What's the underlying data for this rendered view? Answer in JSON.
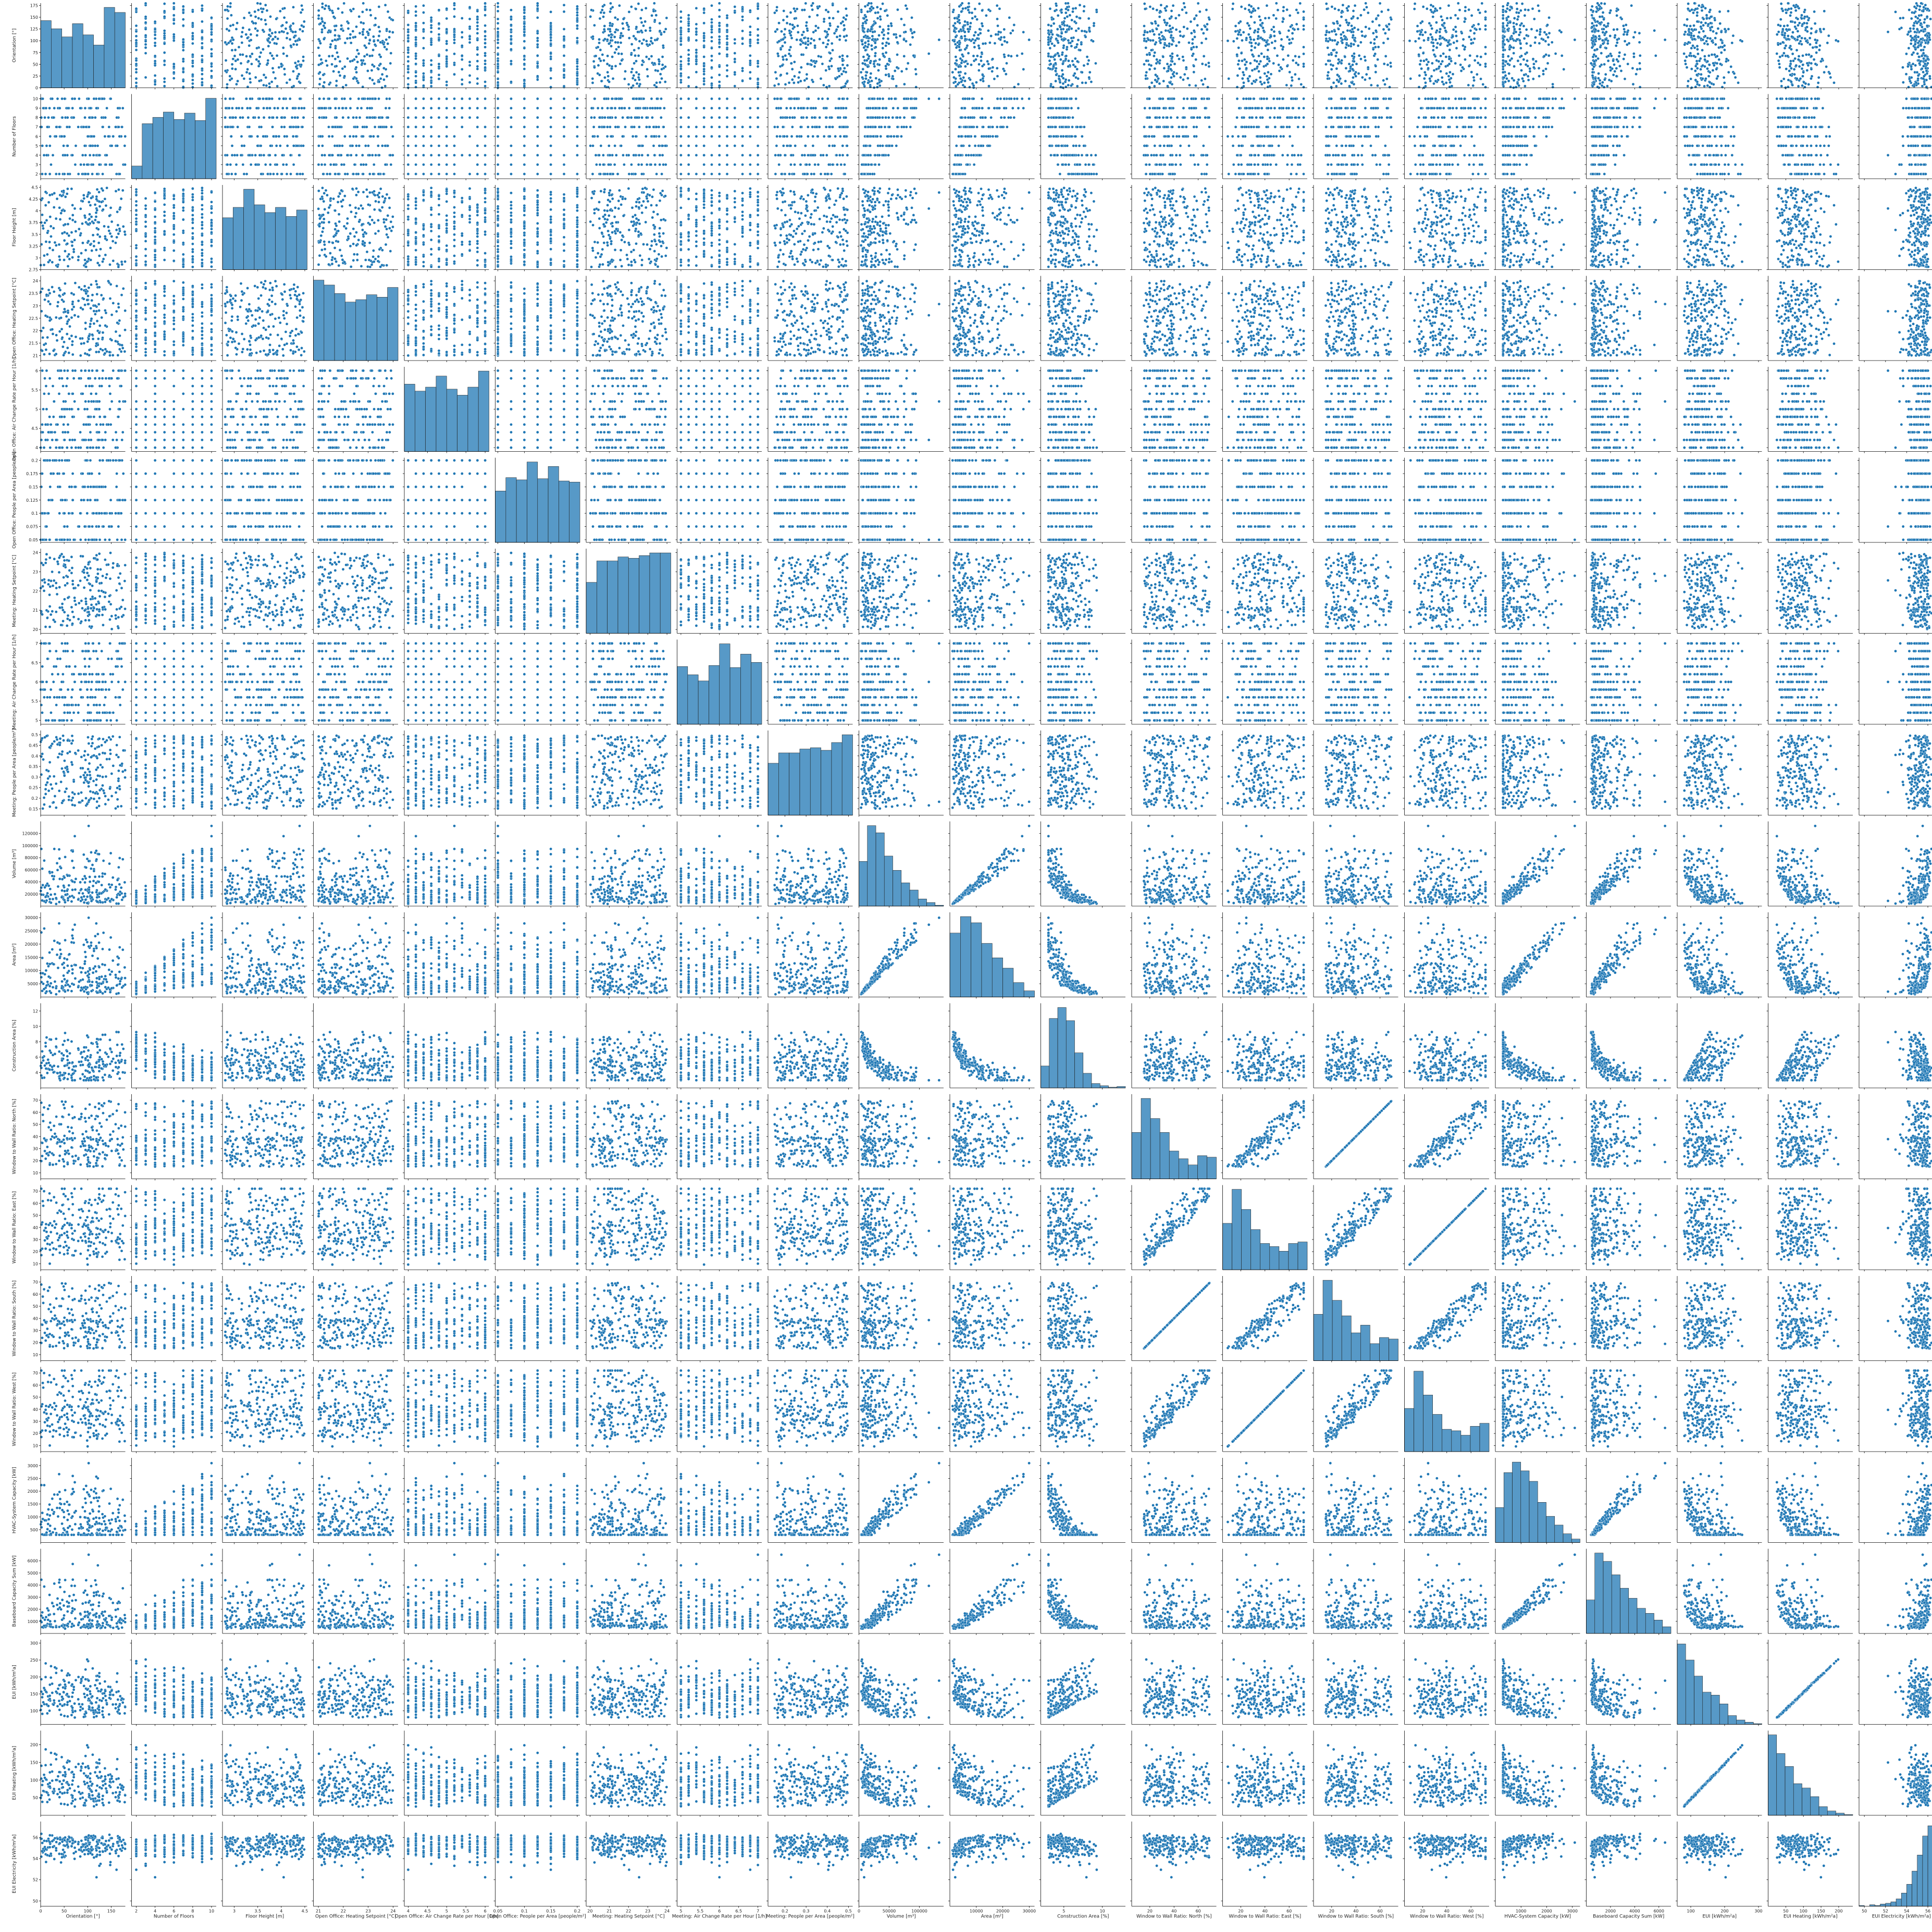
{
  "chart_data": {
    "type": "scatter",
    "layout": "pairplot-21x21",
    "diagonal": "histogram",
    "offdiagonal": "scatter",
    "marker_color": "#1f77b4",
    "marker_edge": "#ffffff",
    "variables": [
      {
        "label": "Orientation [°]",
        "lim": [
          0,
          180
        ],
        "ticks": [
          0,
          50,
          100,
          150
        ],
        "yticks": [
          0,
          25,
          50,
          75,
          100,
          125,
          150,
          175
        ],
        "hist": [
          66,
          58,
          50,
          63,
          52,
          42,
          79,
          74
        ]
      },
      {
        "label": "Number of Floors",
        "lim": [
          1.5,
          10.5
        ],
        "ticks": [
          2,
          4,
          6,
          8,
          10
        ],
        "yticks": [
          2,
          3,
          4,
          5,
          6,
          7,
          8,
          9,
          10
        ],
        "hist": [
          12,
          52,
          58,
          63,
          56,
          62,
          55,
          76
        ]
      },
      {
        "label": "Floor Height [m]",
        "lim": [
          2.75,
          4.55
        ],
        "ticks": [
          3.0,
          3.5,
          4.0,
          4.5
        ],
        "yticks": [
          2.75,
          3.0,
          3.25,
          3.5,
          3.75,
          4.0,
          4.25,
          4.5
        ],
        "hist": [
          40,
          48,
          62,
          50,
          44,
          48,
          41,
          46
        ]
      },
      {
        "label": "Open Office: Heating Setpoint [°C]",
        "lim": [
          20.8,
          24.2
        ],
        "ticks": [
          21,
          22,
          23,
          24
        ],
        "yticks": [
          21.0,
          21.5,
          22.0,
          22.5,
          23.0,
          23.5,
          24.0
        ],
        "hist": [
          66,
          62,
          55,
          48,
          50,
          54,
          52,
          60
        ]
      },
      {
        "label": "Open Office: Air Change Rate per Hour [1/h]",
        "lim": [
          3.9,
          6.1
        ],
        "ticks": [
          4.0,
          4.5,
          5.0,
          5.5,
          6.0
        ],
        "yticks": [
          4.0,
          4.5,
          5.0,
          5.5,
          6.0
        ],
        "hist": [
          67,
          60,
          64,
          75,
          62,
          56,
          64,
          80
        ]
      },
      {
        "label": "Open Office: People per Area [people/m²]",
        "lim": [
          0.045,
          0.205
        ],
        "ticks": [
          0.05,
          0.1,
          0.15,
          0.2
        ],
        "yticks": [
          0.05,
          0.075,
          0.1,
          0.125,
          0.15,
          0.175,
          0.2
        ],
        "hist": [
          46,
          58,
          56,
          72,
          57,
          68,
          55,
          54
        ]
      },
      {
        "label": "Meeting: Heating Setpoint [°C]",
        "lim": [
          19.8,
          24.2
        ],
        "ticks": [
          20,
          21,
          22,
          23,
          24
        ],
        "yticks": [
          20,
          21,
          22,
          23,
          24
        ],
        "hist": [
          38,
          54,
          54,
          57,
          56,
          58,
          60,
          60
        ]
      },
      {
        "label": "Meeting: Air Change Rate per Hour [1/h]",
        "lim": [
          4.9,
          7.1
        ],
        "ticks": [
          5.0,
          5.5,
          6.0,
          6.5,
          7.0
        ],
        "yticks": [
          5.0,
          5.5,
          6.0,
          6.5,
          7.0
        ],
        "hist": [
          56,
          48,
          42,
          57,
          78,
          55,
          68,
          60
        ]
      },
      {
        "label": "Meeting: People per Area [people/m²]",
        "lim": [
          0.12,
          0.52
        ],
        "ticks": [
          0.2,
          0.3,
          0.4,
          0.5
        ],
        "yticks": [
          0.15,
          0.2,
          0.25,
          0.3,
          0.35,
          0.4,
          0.45,
          0.5
        ],
        "hist": [
          40,
          48,
          48,
          51,
          52,
          50,
          56,
          62
        ]
      },
      {
        "label": "Volume [m³]",
        "lim": [
          0,
          140000
        ],
        "ticks": [
          0,
          50000,
          100000
        ],
        "yticks": [
          20000,
          40000,
          60000,
          80000,
          100000,
          120000
        ],
        "hist": [
          50,
          90,
          82,
          56,
          40,
          26,
          18,
          8,
          4,
          1
        ]
      },
      {
        "label": "Area [m²]",
        "lim": [
          0,
          32000
        ],
        "ticks": [
          10000,
          20000,
          30000
        ],
        "yticks": [
          5000,
          10000,
          15000,
          20000,
          25000,
          30000
        ],
        "hist": [
          62,
          78,
          72,
          52,
          38,
          28,
          14,
          6
        ]
      },
      {
        "label": "Construction Area [%]",
        "lim": [
          2,
          13
        ],
        "ticks": [
          5,
          10
        ],
        "yticks": [
          4,
          6,
          8,
          10,
          12
        ],
        "hist": [
          30,
          95,
          110,
          92,
          48,
          20,
          6,
          3,
          1,
          2
        ]
      },
      {
        "label": "Window to Wall Ratio: North [%]",
        "lim": [
          5,
          75
        ],
        "ticks": [
          20,
          40,
          60
        ],
        "yticks": [
          10,
          20,
          30,
          40,
          50,
          60,
          70
        ],
        "hist": [
          60,
          104,
          78,
          60,
          36,
          26,
          18,
          30,
          28
        ]
      },
      {
        "label": "Window to Wall Ratio: East [%]",
        "lim": [
          5,
          75
        ],
        "ticks": [
          20,
          40,
          60
        ],
        "yticks": [
          10,
          20,
          30,
          40,
          50,
          60,
          70
        ],
        "hist": [
          60,
          104,
          78,
          52,
          34,
          30,
          24,
          34,
          36
        ]
      },
      {
        "label": "Window to Wall Ratio: South [%]",
        "lim": [
          5,
          75
        ],
        "ticks": [
          20,
          40,
          60
        ],
        "yticks": [
          10,
          20,
          30,
          40,
          50,
          60,
          70
        ],
        "hist": [
          60,
          104,
          78,
          58,
          36,
          46,
          22,
          30,
          28
        ]
      },
      {
        "label": "Window to Wall Ratio: West [%]",
        "lim": [
          5,
          75
        ],
        "ticks": [
          20,
          40,
          60
        ],
        "yticks": [
          10,
          20,
          30,
          40,
          50,
          60,
          70
        ],
        "hist": [
          58,
          108,
          76,
          50,
          30,
          28,
          22,
          34,
          38
        ]
      },
      {
        "label": "HVAC-System Capacity [kW]",
        "lim": [
          0,
          3300
        ],
        "ticks": [
          1000,
          2000,
          3000
        ],
        "yticks": [
          500,
          1000,
          1500,
          2000,
          2500,
          3000
        ],
        "hist": [
          40,
          80,
          92,
          82,
          70,
          46,
          30,
          20,
          10,
          4
        ]
      },
      {
        "label": "Baseboard Capacity Sum [kW]",
        "lim": [
          0,
          7000
        ],
        "ticks": [
          2000,
          4000,
          6000
        ],
        "yticks": [
          1000,
          2000,
          3000,
          4000,
          5000,
          6000
        ],
        "hist": [
          40,
          96,
          86,
          70,
          54,
          42,
          30,
          24,
          16,
          8
        ]
      },
      {
        "label": "EUI [kWh/m²a]",
        "lim": [
          60,
          310
        ],
        "ticks": [
          100,
          200,
          300
        ],
        "yticks": [
          100,
          150,
          200,
          250,
          300
        ],
        "hist": [
          110,
          88,
          66,
          44,
          40,
          28,
          12,
          6,
          3,
          1
        ]
      },
      {
        "label": "EUI Heating [kWh/m²a]",
        "lim": [
          0,
          240
        ],
        "ticks": [
          50,
          100,
          150,
          200
        ],
        "yticks": [
          50,
          100,
          150,
          200
        ],
        "hist": [
          112,
          86,
          68,
          44,
          38,
          26,
          12,
          6,
          3,
          1
        ]
      },
      {
        "label": "EUI Electricity [kWh/m²a]",
        "lim": [
          49.5,
          57.5
        ],
        "ticks": [
          50,
          52,
          54,
          56
        ],
        "yticks": [
          50,
          52,
          54,
          56
        ],
        "hist": [
          1,
          0,
          2,
          1,
          3,
          4,
          6,
          10,
          18,
          30,
          48,
          70,
          96,
          110,
          78,
          30
        ]
      }
    ]
  }
}
